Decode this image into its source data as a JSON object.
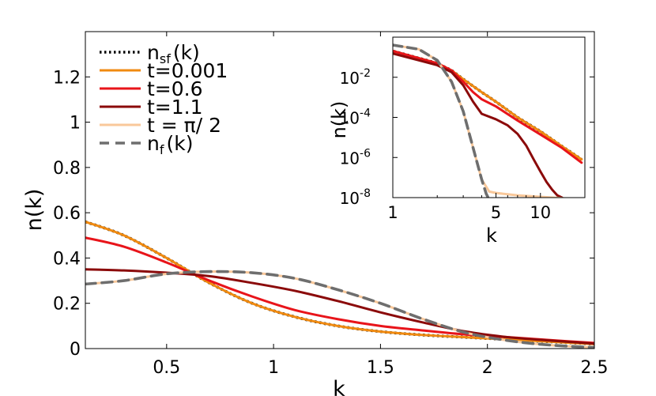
{
  "chart_data": [
    {
      "type": "line",
      "title": "",
      "xlabel": "k",
      "ylabel": "n(k)",
      "xlim": [
        0.12,
        2.5
      ],
      "ylim": [
        0,
        1.4
      ],
      "xticks": [
        0.5,
        1,
        1.5,
        2,
        2.5
      ],
      "xtick_labels": [
        "0.5",
        "1",
        "1.5",
        "2",
        "2.5"
      ],
      "yticks": [
        0,
        0.2,
        0.4,
        0.6,
        0.8,
        1,
        1.2
      ],
      "ytick_labels": [
        "0",
        "0.2",
        "0.4",
        "0.6",
        "0.8",
        "1",
        "1.2"
      ],
      "grid": false,
      "legend_position": "top-left",
      "series": [
        {
          "name": "n_sf(k)",
          "label_main": "n",
          "label_sub": "sf",
          "label_tail": "(k)",
          "color": "#000000",
          "style": "dotted",
          "x": [
            0.12,
            0.3,
            0.5,
            0.7,
            0.9,
            1.1,
            1.3,
            1.5,
            1.7,
            1.9,
            2.1,
            2.3,
            2.5
          ],
          "y": [
            0.56,
            0.5,
            0.4,
            0.29,
            0.2,
            0.14,
            0.1,
            0.075,
            0.06,
            0.05,
            0.04,
            0.03,
            0.02
          ]
        },
        {
          "name": "t=0.001",
          "label_main": "t=0.001",
          "color": "#f08a10",
          "style": "solid",
          "x": [
            0.12,
            0.3,
            0.5,
            0.7,
            0.9,
            1.1,
            1.3,
            1.5,
            1.7,
            1.9,
            2.1,
            2.3,
            2.5
          ],
          "y": [
            0.56,
            0.5,
            0.4,
            0.29,
            0.2,
            0.14,
            0.1,
            0.075,
            0.06,
            0.05,
            0.04,
            0.03,
            0.02
          ]
        },
        {
          "name": "t=0.6",
          "label_main": "t=0.6",
          "color": "#e8141a",
          "style": "solid",
          "x": [
            0.12,
            0.3,
            0.5,
            0.7,
            0.9,
            1.1,
            1.3,
            1.5,
            1.7,
            1.9,
            2.1,
            2.3,
            2.5
          ],
          "y": [
            0.49,
            0.45,
            0.38,
            0.3,
            0.23,
            0.17,
            0.13,
            0.1,
            0.08,
            0.062,
            0.05,
            0.037,
            0.025
          ]
        },
        {
          "name": "t=1.1",
          "label_main": "t=1.1",
          "color": "#8b0a0a",
          "style": "solid",
          "x": [
            0.12,
            0.3,
            0.5,
            0.7,
            0.9,
            1.1,
            1.3,
            1.5,
            1.7,
            1.9,
            2.1,
            2.3,
            2.5
          ],
          "y": [
            0.35,
            0.345,
            0.335,
            0.32,
            0.29,
            0.255,
            0.21,
            0.16,
            0.115,
            0.075,
            0.05,
            0.035,
            0.022
          ]
        },
        {
          "name": "t = π/2",
          "label_main": "t = π/ 2",
          "color": "#f9c89a",
          "style": "solid",
          "x": [
            0.12,
            0.3,
            0.5,
            0.7,
            0.9,
            1.1,
            1.3,
            1.5,
            1.7,
            1.9,
            2.1,
            2.3,
            2.5
          ],
          "y": [
            0.285,
            0.3,
            0.33,
            0.34,
            0.335,
            0.31,
            0.26,
            0.2,
            0.13,
            0.07,
            0.035,
            0.015,
            0.005
          ]
        },
        {
          "name": "n_f(k)",
          "label_main": "n",
          "label_sub": "f",
          "label_tail": "(k)",
          "color": "#6e6e6e",
          "style": "dashed",
          "x": [
            0.12,
            0.3,
            0.5,
            0.7,
            0.9,
            1.1,
            1.3,
            1.5,
            1.7,
            1.9,
            2.1,
            2.3,
            2.5
          ],
          "y": [
            0.285,
            0.3,
            0.33,
            0.34,
            0.335,
            0.31,
            0.26,
            0.2,
            0.13,
            0.07,
            0.035,
            0.015,
            0.005
          ]
        }
      ]
    },
    {
      "type": "line",
      "title": "",
      "xlabel": "k",
      "ylabel": "n(k)",
      "xscale": "log",
      "yscale": "log",
      "xlim": [
        1,
        20
      ],
      "ylim": [
        1e-08,
        1
      ],
      "xticks": [
        1,
        5,
        10
      ],
      "xtick_labels": [
        "1",
        "5",
        "10"
      ],
      "yticks": [
        1e-08,
        1e-06,
        0.0001,
        0.01
      ],
      "ytick_labels": [
        [
          "10",
          "-8"
        ],
        [
          "10",
          "-6"
        ],
        [
          "10",
          "-4"
        ],
        [
          "10",
          "-2"
        ]
      ],
      "grid": false,
      "series": [
        {
          "name": "n_sf(k)",
          "color": "#000000",
          "style": "dotted",
          "x": [
            1.01,
            1.5,
            2.0,
            2.5,
            3.0,
            4.0,
            5.0,
            7.0,
            10.0,
            14.0,
            19.0
          ],
          "y": [
            0.2,
            0.09,
            0.05,
            0.022,
            0.008,
            0.0018,
            0.0006,
            0.0001,
            2e-05,
            3.6e-06,
            8e-07
          ]
        },
        {
          "name": "t=0.001",
          "color": "#f08a10",
          "style": "solid",
          "x": [
            1.01,
            1.5,
            2.0,
            2.5,
            3.0,
            4.0,
            5.0,
            7.0,
            10.0,
            14.0,
            19.0
          ],
          "y": [
            0.2,
            0.09,
            0.05,
            0.022,
            0.008,
            0.0018,
            0.0006,
            0.0001,
            2e-05,
            3.6e-06,
            8e-07
          ]
        },
        {
          "name": "t=0.6",
          "color": "#e8141a",
          "style": "solid",
          "x": [
            1.01,
            1.5,
            2.0,
            2.5,
            3.0,
            3.5,
            4.0,
            5.0,
            7.0,
            10.0,
            14.0,
            19.0
          ],
          "y": [
            0.2,
            0.09,
            0.05,
            0.022,
            0.006,
            0.0018,
            0.0008,
            0.00035,
            7e-05,
            1.4e-05,
            3e-06,
            5.5e-07
          ]
        },
        {
          "name": "t=1.1",
          "color": "#8b0a0a",
          "style": "solid",
          "x": [
            1.01,
            1.5,
            2.0,
            2.5,
            3.0,
            3.5,
            4.0,
            5.0,
            6.0,
            7.0,
            8.0,
            9.0,
            10.0,
            11.0,
            12.0,
            13.0,
            14.0
          ],
          "y": [
            0.15,
            0.07,
            0.04,
            0.018,
            0.004,
            0.0006,
            0.00015,
            8e-05,
            4e-05,
            1.5e-05,
            4e-06,
            8e-07,
            2e-07,
            6e-08,
            2.5e-08,
            1.3e-08,
            1e-08
          ]
        },
        {
          "name": "t = π/2",
          "color": "#f9c89a",
          "style": "solid",
          "x": [
            1.01,
            1.5,
            2.0,
            2.5,
            3.0,
            3.5,
            4.0,
            4.5,
            5.0,
            7.0,
            10.0,
            15.0
          ],
          "y": [
            0.4,
            0.25,
            0.07,
            0.006,
            0.0002,
            3e-06,
            8e-08,
            2e-08,
            1.7e-08,
            1.3e-08,
            1.1e-08,
            9e-09
          ]
        },
        {
          "name": "n_f(k)",
          "color": "#6e6e6e",
          "style": "dashed",
          "x": [
            1.01,
            1.5,
            2.0,
            2.5,
            3.0,
            3.5,
            4.0,
            4.3,
            4.5
          ],
          "y": [
            0.4,
            0.25,
            0.07,
            0.006,
            0.0002,
            3e-06,
            8e-08,
            1.5e-08,
            8e-09
          ]
        }
      ]
    }
  ]
}
